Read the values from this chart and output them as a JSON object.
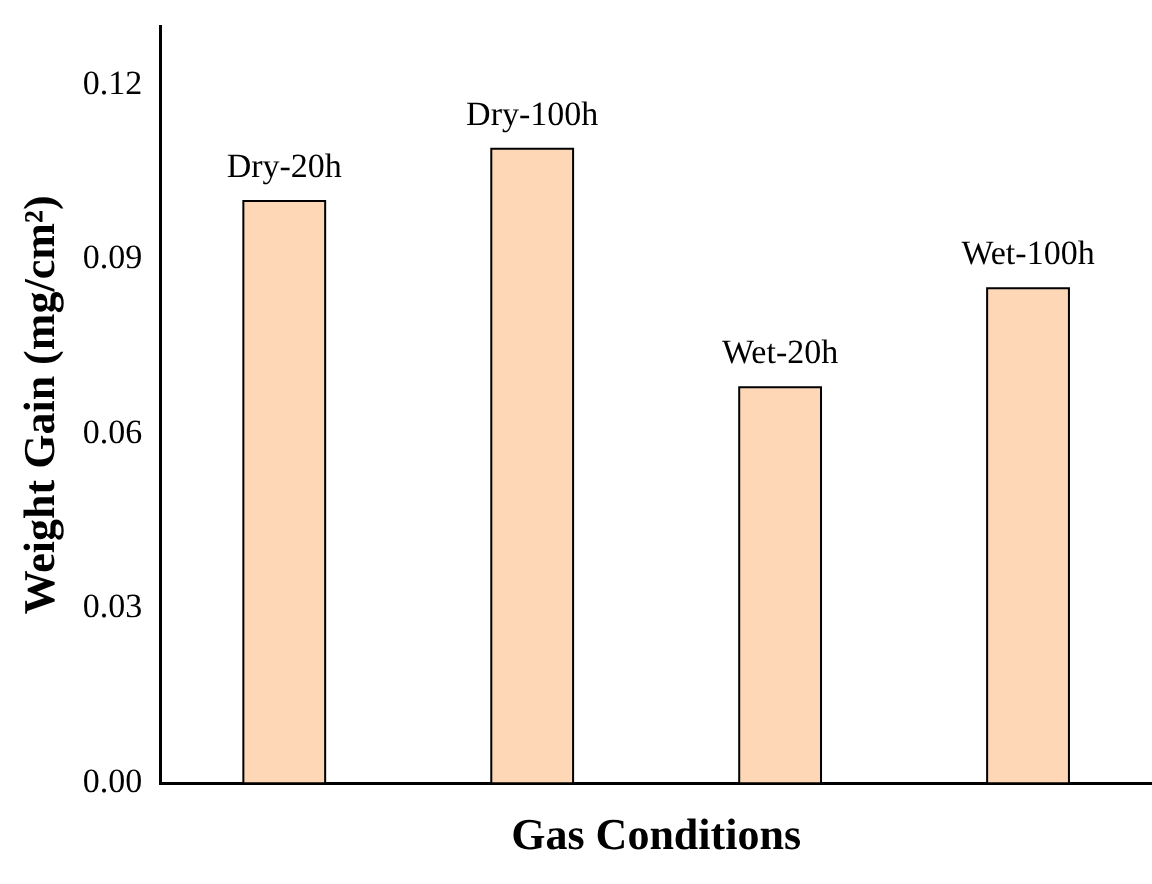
{
  "chart_data": {
    "type": "bar",
    "xlabel": "Gas Conditions",
    "ylabel": "Weight Gain (mg/cm²)",
    "categories": [
      "Dry-20h",
      "Dry-100h",
      "Wet-20h",
      "Wet-100h"
    ],
    "values": [
      0.1,
      0.109,
      0.068,
      0.085
    ],
    "color": "#fdd7b6",
    "ylim": [
      0,
      0.13
    ],
    "yticks": [
      {
        "value": 0,
        "label": "0.00"
      },
      0.03,
      0.06,
      0.09,
      0.12
    ],
    "grid": false,
    "legend": false,
    "tick_labels": "y"
  }
}
